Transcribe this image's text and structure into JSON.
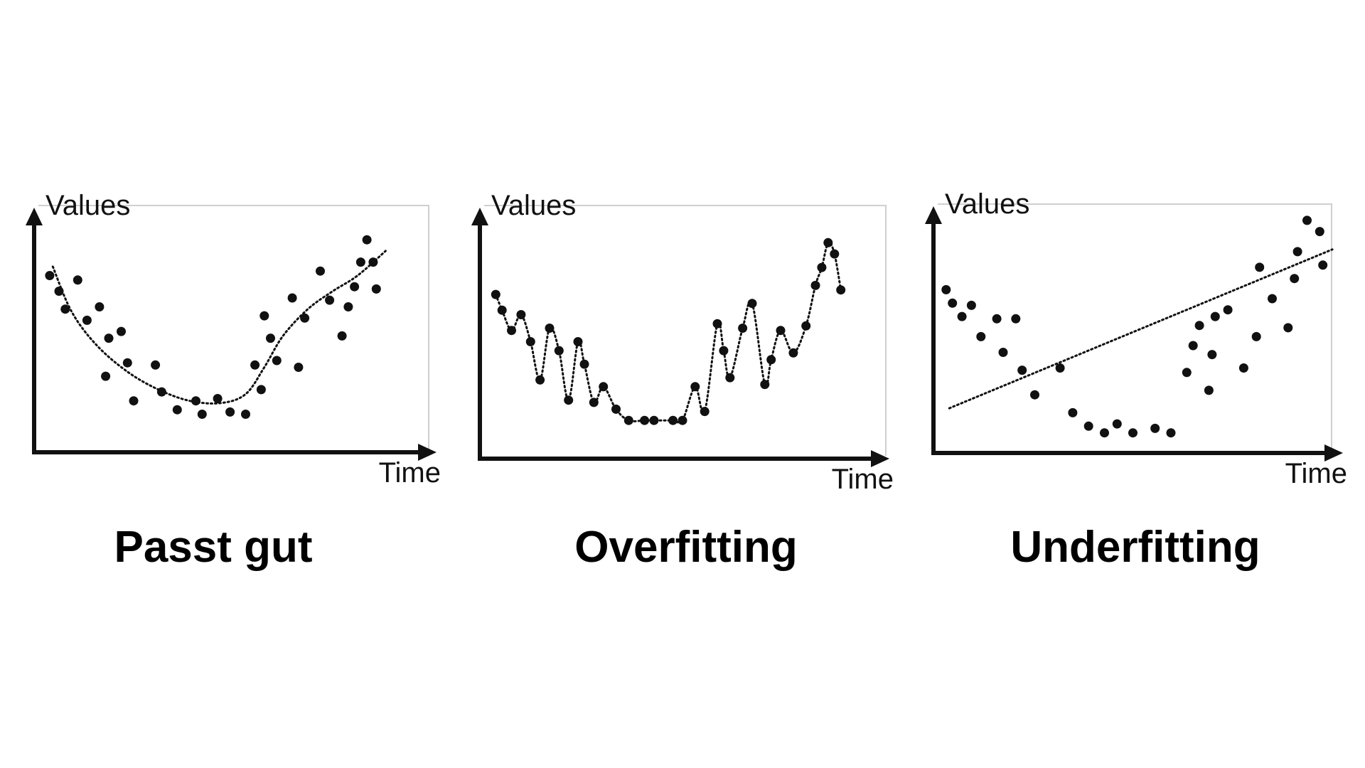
{
  "colors": {
    "background": "#ffffff",
    "ink": "#111111",
    "frame": "#cfcfcf"
  },
  "chart_data": [
    {
      "type": "scatter",
      "caption": "Passt gut",
      "xlabel": "Time",
      "ylabel": "Values",
      "fit": "smooth-curve",
      "points": [
        [
          5,
          79
        ],
        [
          8,
          72
        ],
        [
          10,
          64
        ],
        [
          14,
          77
        ],
        [
          17,
          59
        ],
        [
          21,
          65
        ],
        [
          23,
          34
        ],
        [
          24,
          51
        ],
        [
          28,
          54
        ],
        [
          30,
          40
        ],
        [
          32,
          23
        ],
        [
          39,
          39
        ],
        [
          41,
          27
        ],
        [
          46,
          19
        ],
        [
          52,
          23
        ],
        [
          54,
          17
        ],
        [
          59,
          24
        ],
        [
          63,
          18
        ],
        [
          68,
          17
        ],
        [
          71,
          39
        ],
        [
          73,
          28
        ],
        [
          74,
          61
        ],
        [
          76,
          51
        ],
        [
          78,
          41
        ],
        [
          83,
          69
        ],
        [
          85,
          38
        ],
        [
          87,
          60
        ],
        [
          92,
          81
        ],
        [
          95,
          68
        ],
        [
          99,
          52
        ],
        [
          101,
          65
        ],
        [
          103,
          74
        ],
        [
          105,
          85
        ],
        [
          107,
          95
        ],
        [
          109,
          85
        ],
        [
          110,
          73
        ]
      ],
      "fit_line": [
        [
          6,
          83
        ],
        [
          12,
          63
        ],
        [
          20,
          48
        ],
        [
          30,
          36
        ],
        [
          40,
          28
        ],
        [
          50,
          23
        ],
        [
          60,
          22
        ],
        [
          68,
          26
        ],
        [
          74,
          38
        ],
        [
          80,
          52
        ],
        [
          88,
          64
        ],
        [
          96,
          72
        ],
        [
          104,
          79
        ],
        [
          113,
          90
        ]
      ]
    },
    {
      "type": "scatter",
      "caption": "Overfitting",
      "xlabel": "Time",
      "ylabel": "Values",
      "fit": "interpolating-curve",
      "points": [
        [
          5,
          73
        ],
        [
          7,
          66
        ],
        [
          10,
          57
        ],
        [
          13,
          64
        ],
        [
          16,
          52
        ],
        [
          19,
          35
        ],
        [
          22,
          58
        ],
        [
          25,
          48
        ],
        [
          28,
          26
        ],
        [
          31,
          52
        ],
        [
          33,
          42
        ],
        [
          36,
          25
        ],
        [
          39,
          32
        ],
        [
          43,
          22
        ],
        [
          47,
          17
        ],
        [
          52,
          17
        ],
        [
          55,
          17
        ],
        [
          61,
          17
        ],
        [
          64,
          17
        ],
        [
          68,
          32
        ],
        [
          71,
          21
        ],
        [
          75,
          60
        ],
        [
          77,
          48
        ],
        [
          79,
          36
        ],
        [
          83,
          58
        ],
        [
          86,
          69
        ],
        [
          90,
          33
        ],
        [
          92,
          44
        ],
        [
          95,
          57
        ],
        [
          99,
          47
        ],
        [
          103,
          59
        ],
        [
          106,
          77
        ],
        [
          108,
          85
        ],
        [
          110,
          96
        ],
        [
          112,
          91
        ],
        [
          114,
          75
        ]
      ]
    },
    {
      "type": "scatter",
      "caption": "Underfitting",
      "xlabel": "Time",
      "ylabel": "Values",
      "fit": "straight-line",
      "points": [
        [
          4,
          73
        ],
        [
          6,
          67
        ],
        [
          9,
          61
        ],
        [
          12,
          66
        ],
        [
          15,
          52
        ],
        [
          20,
          60
        ],
        [
          22,
          45
        ],
        [
          26,
          60
        ],
        [
          28,
          37
        ],
        [
          32,
          26
        ],
        [
          40,
          38
        ],
        [
          44,
          18
        ],
        [
          49,
          12
        ],
        [
          54,
          9
        ],
        [
          58,
          13
        ],
        [
          63,
          9
        ],
        [
          70,
          11
        ],
        [
          75,
          9
        ],
        [
          80,
          36
        ],
        [
          82,
          48
        ],
        [
          84,
          57
        ],
        [
          87,
          28
        ],
        [
          88,
          44
        ],
        [
          89,
          61
        ],
        [
          93,
          64
        ],
        [
          98,
          38
        ],
        [
          102,
          52
        ],
        [
          103,
          83
        ],
        [
          107,
          69
        ],
        [
          112,
          56
        ],
        [
          114,
          78
        ],
        [
          115,
          90
        ],
        [
          118,
          104
        ],
        [
          122,
          99
        ],
        [
          123,
          84
        ]
      ],
      "fit_line": [
        [
          5,
          20
        ],
        [
          126,
          91
        ]
      ]
    }
  ]
}
